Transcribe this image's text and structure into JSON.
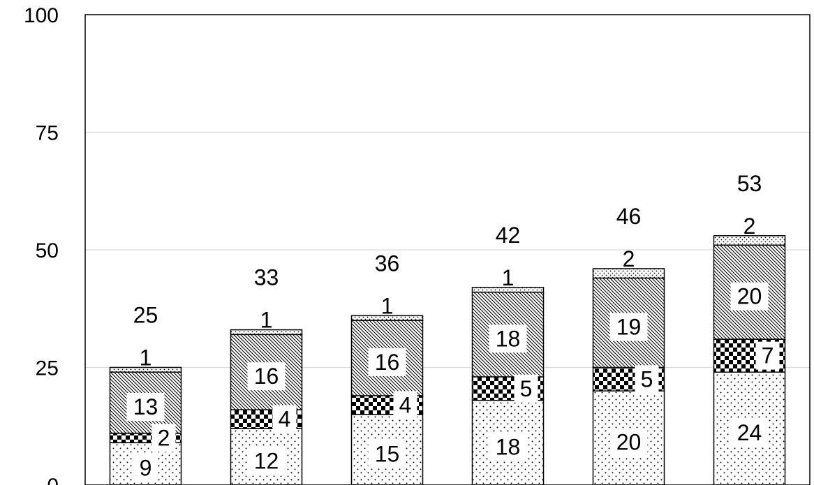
{
  "chart_data": {
    "type": "bar",
    "stacked": true,
    "title": "",
    "xlabel": "",
    "ylabel": "",
    "ylim": [
      0,
      100
    ],
    "yticks": [
      "0",
      "25",
      "50",
      "75",
      "100"
    ],
    "grid": true,
    "categories": [
      "",
      "",
      "",
      "",
      "",
      ""
    ],
    "series": [
      {
        "pattern": "dots",
        "values": [
          9,
          12,
          15,
          18,
          20,
          24
        ]
      },
      {
        "pattern": "checker",
        "values": [
          2,
          4,
          4,
          5,
          5,
          7
        ]
      },
      {
        "pattern": "diagonal",
        "values": [
          13,
          16,
          16,
          18,
          19,
          20
        ]
      },
      {
        "pattern": "fine-dots",
        "values": [
          1,
          1,
          1,
          1,
          2,
          2
        ]
      }
    ],
    "totals": [
      25,
      33,
      36,
      42,
      46,
      53
    ],
    "colors": {
      "ink": "#000000",
      "grid": "#d9d9d9",
      "background": "#ffffff"
    }
  }
}
